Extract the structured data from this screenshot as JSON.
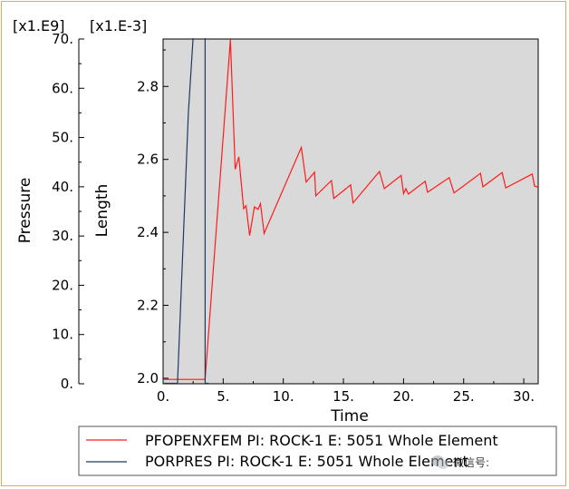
{
  "chart_data": {
    "type": "line",
    "xlabel": "Time",
    "x_ticks": [
      "0.",
      "5.",
      "10.",
      "15.",
      "20.",
      "25.",
      "30."
    ],
    "xlim": [
      0,
      31.2
    ],
    "axes": [
      {
        "label": "Pressure",
        "multiplier": "[x1.E9]",
        "ticks": [
          "0.",
          "10.",
          "20.",
          "30.",
          "40.",
          "50.",
          "60.",
          "70."
        ],
        "ylim": [
          0,
          70
        ]
      },
      {
        "label": "Length",
        "multiplier": "[x1.E-3]",
        "ticks": [
          "2.0",
          "2.2",
          "2.4",
          "2.6",
          "2.8"
        ],
        "ylim": [
          1.985,
          2.93
        ]
      }
    ],
    "background": "#d9d9d9",
    "series": [
      {
        "name": "PFOPENXFEM PI: ROCK-1 E: 5051 Whole Element",
        "axis": "Length",
        "color": "#ff1a1a",
        "points": [
          [
            0,
            1.997
          ],
          [
            3.5,
            1.997
          ],
          [
            5.6,
            2.928
          ],
          [
            6.0,
            2.573
          ],
          [
            6.3,
            2.607
          ],
          [
            6.7,
            2.465
          ],
          [
            6.9,
            2.473
          ],
          [
            7.2,
            2.391
          ],
          [
            7.6,
            2.47
          ],
          [
            7.9,
            2.463
          ],
          [
            8.1,
            2.479
          ],
          [
            8.4,
            2.397
          ],
          [
            11.5,
            2.633
          ],
          [
            11.9,
            2.538
          ],
          [
            12.6,
            2.565
          ],
          [
            12.7,
            2.5
          ],
          [
            14.0,
            2.542
          ],
          [
            14.2,
            2.493
          ],
          [
            15.6,
            2.53
          ],
          [
            15.8,
            2.481
          ],
          [
            18.0,
            2.567
          ],
          [
            18.4,
            2.52
          ],
          [
            19.8,
            2.556
          ],
          [
            20.0,
            2.506
          ],
          [
            20.2,
            2.52
          ],
          [
            20.4,
            2.505
          ],
          [
            21.8,
            2.54
          ],
          [
            22.0,
            2.51
          ],
          [
            23.8,
            2.55
          ],
          [
            24.2,
            2.508
          ],
          [
            26.4,
            2.562
          ],
          [
            26.6,
            2.525
          ],
          [
            28.2,
            2.564
          ],
          [
            28.5,
            2.522
          ],
          [
            30.7,
            2.56
          ],
          [
            30.9,
            2.527
          ],
          [
            31.1,
            2.525
          ],
          [
            31.4,
            2.533
          ]
        ]
      },
      {
        "name": "PORPRES PI: ROCK-1 E: 5051 Whole Element",
        "axis": "Pressure",
        "color": "#1f3a5f",
        "points": [
          [
            0,
            0.1
          ],
          [
            1.2,
            0.1
          ],
          [
            2.1,
            55
          ],
          [
            2.5,
            70.5
          ],
          [
            3.5,
            70.5
          ],
          [
            3.5,
            0.1
          ],
          [
            3.8,
            0.1
          ]
        ]
      }
    ]
  },
  "watermark": "微信号:"
}
